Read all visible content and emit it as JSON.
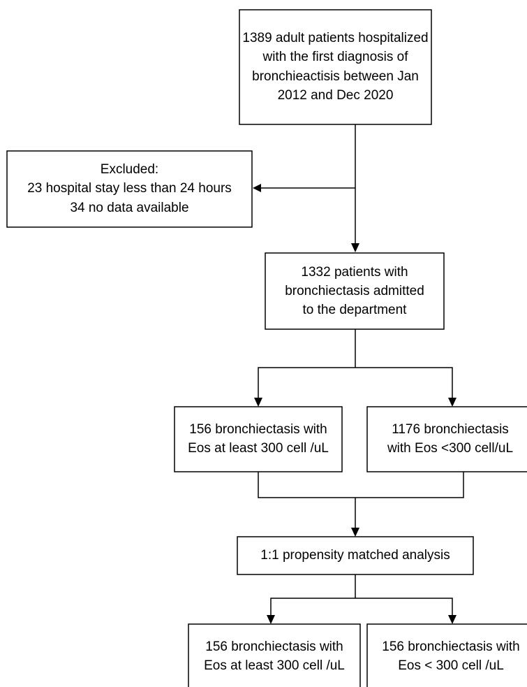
{
  "nodes": [
    {
      "lines": [
        "1389 adult patients hospitalized",
        "with the first diagnosis of",
        "bronchieactisis between Jan",
        "2012 and Dec 2020"
      ]
    },
    {
      "lines": [
        "Excluded:",
        "23 hospital stay less than 24 hours",
        "34 no data available"
      ]
    },
    {
      "lines": [
        "1332 patients with",
        "bronchiectasis admitted",
        "to the department"
      ]
    },
    {
      "lines": [
        "156 bronchiectasis with",
        "Eos at least 300 cell /uL"
      ]
    },
    {
      "lines": [
        "1176 bronchiectasis",
        "with Eos <300 cell/uL"
      ]
    },
    {
      "lines": [
        "1:1 propensity matched analysis"
      ]
    },
    {
      "lines": [
        "156 bronchiectasis with",
        "Eos at least 300 cell /uL"
      ]
    },
    {
      "lines": [
        "156 bronchiectasis with",
        "Eos < 300 cell /uL"
      ]
    }
  ]
}
